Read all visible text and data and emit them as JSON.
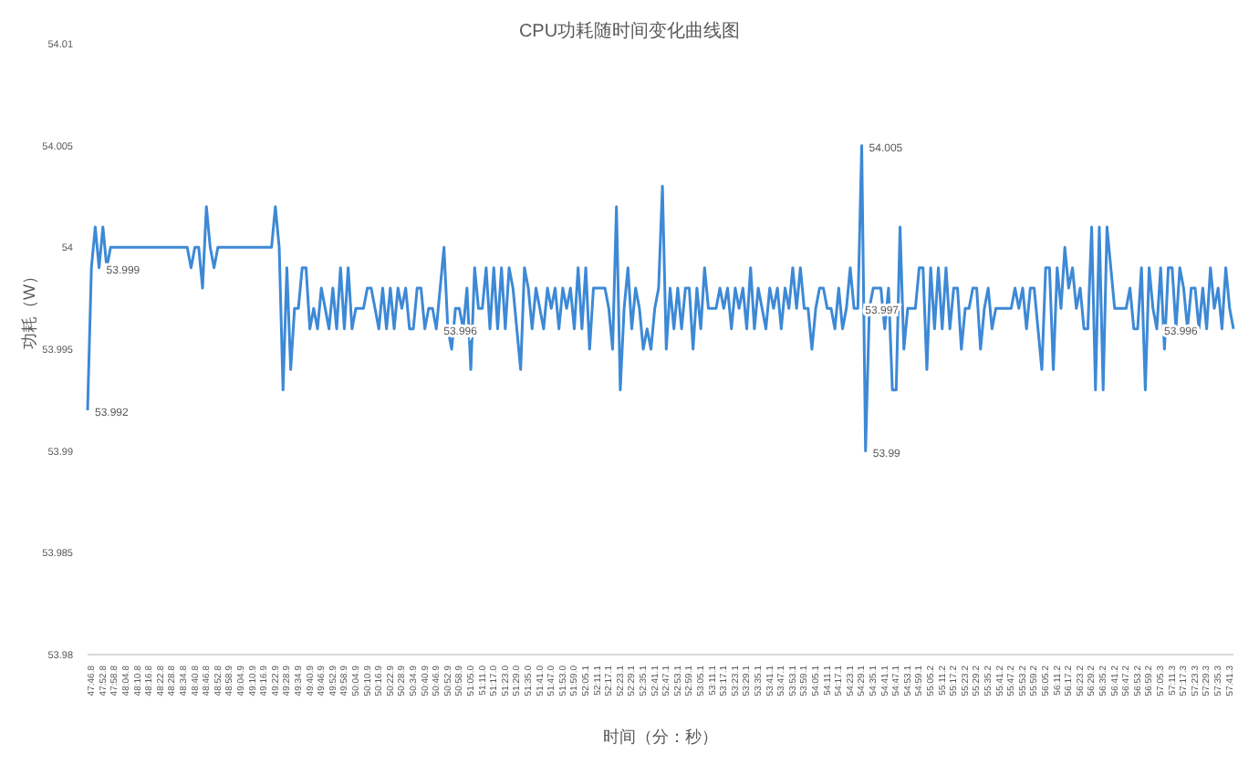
{
  "chart_data": {
    "type": "line",
    "title": "CPU功耗随时间变化曲线图",
    "xlabel": "时间（分：秒）",
    "ylabel": "功耗（W）",
    "categories": [
      "47:46.8",
      null,
      null,
      "47:52.8",
      null,
      null,
      "47:58.8",
      null,
      null,
      "48:04.8",
      null,
      null,
      "48:10.8",
      null,
      null,
      "48:16.8",
      null,
      null,
      "48:22.8",
      null,
      null,
      "48:28.8",
      null,
      null,
      "48:34.8",
      null,
      null,
      "48:40.8",
      null,
      null,
      "48:46.8",
      null,
      null,
      "48:52.8",
      null,
      null,
      "48:58.9",
      null,
      null,
      "49:04.9",
      null,
      null,
      "49:10.9",
      null,
      null,
      "49:16.9",
      null,
      null,
      "49:22.9",
      null,
      null,
      "49:28.9",
      null,
      null,
      "49:34.9",
      null,
      null,
      "49:40.9",
      null,
      null,
      "49:46.9",
      null,
      null,
      "49:52.9",
      null,
      null,
      "49:58.9",
      null,
      null,
      "50:04.9",
      null,
      null,
      "50:10.9",
      null,
      null,
      "50:16.9",
      null,
      null,
      "50:22.9",
      null,
      null,
      "50:28.9",
      null,
      null,
      "50:34.9",
      null,
      null,
      "50:40.9",
      null,
      null,
      "50:46.9",
      null,
      null,
      "50:52.9",
      null,
      null,
      "50:58.9",
      null,
      null,
      "51:05.0",
      null,
      null,
      "51:11.0",
      null,
      null,
      "51:17.0",
      null,
      null,
      "51:23.0",
      null,
      null,
      "51:29.0",
      null,
      null,
      "51:35.0",
      null,
      null,
      "51:41.0",
      null,
      null,
      "51:47.0",
      null,
      null,
      "51:53.0",
      null,
      null,
      "51:59.0",
      null,
      null,
      "52:05.1",
      null,
      null,
      "52:11.1",
      null,
      null,
      "52:17.1",
      null,
      null,
      "52:23.1",
      null,
      null,
      "52:29.1",
      null,
      null,
      "52:35.1",
      null,
      null,
      "52:41.1",
      null,
      null,
      "52:47.1",
      null,
      null,
      "52:53.1",
      null,
      null,
      "52:59.1",
      null,
      null,
      "53:05.1",
      null,
      null,
      "53:11.1",
      null,
      null,
      "53:17.1",
      null,
      null,
      "53:23.1",
      null,
      null,
      "53:29.1",
      null,
      null,
      "53:35.1",
      null,
      null,
      "53:41.1",
      null,
      null,
      "53:47.1",
      null,
      null,
      "53:53.1",
      null,
      null,
      "53:59.1",
      null,
      null,
      "54:05.1",
      null,
      null,
      "54:11.1",
      null,
      null,
      "54:17.1",
      null,
      null,
      "54:23.1",
      null,
      null,
      "54:29.1",
      null,
      null,
      "54:35.1",
      null,
      null,
      "54:41.1",
      null,
      null,
      "54:47.1",
      null,
      null,
      "54:53.1",
      null,
      null,
      "54:59.1",
      null,
      null,
      "55:05.2",
      null,
      null,
      "55:11.2",
      null,
      null,
      "55:17.2",
      null,
      null,
      "55:23.2",
      null,
      null,
      "55:29.2",
      null,
      null,
      "55:35.2",
      null,
      null,
      "55:41.2",
      null,
      null,
      "55:47.2",
      null,
      null,
      "55:53.2",
      null,
      null,
      "55:59.2",
      null,
      null,
      "56:05.2",
      null,
      null,
      "56:11.2",
      null,
      null,
      "56:17.2",
      null,
      null,
      "56:23.2",
      null,
      null,
      "56:29.2",
      null,
      null,
      "56:35.2",
      null,
      null,
      "56:41.2",
      null,
      null,
      "56:47.2",
      null,
      null,
      "56:53.2",
      null,
      null,
      "56:59.2",
      null,
      null,
      "57:05.3",
      null,
      null,
      "57:11.3",
      null,
      null,
      "57:17.3",
      null,
      null,
      "57:23.3",
      null,
      null,
      "57:29.3",
      null,
      null,
      "57:35.3",
      null,
      null,
      "57:41.3",
      null,
      null
    ],
    "series": [
      {
        "color": "#3d89d6",
        "values": [
          53.992,
          53.999,
          54.001,
          53.999,
          54.001,
          53.999,
          54,
          54,
          54,
          54,
          54,
          54,
          54,
          54,
          54,
          54,
          54,
          54,
          54,
          54,
          54,
          54,
          54,
          54,
          54,
          54,
          54,
          53.999,
          54,
          54,
          53.998,
          54.002,
          54,
          53.999,
          54,
          54,
          54,
          54,
          54,
          54,
          54,
          54,
          54,
          54,
          54,
          54,
          54,
          54,
          54,
          54.002,
          54,
          53.993,
          53.999,
          53.994,
          53.997,
          53.997,
          53.999,
          53.999,
          53.996,
          53.997,
          53.996,
          53.998,
          53.997,
          53.996,
          53.998,
          53.996,
          53.999,
          53.996,
          53.999,
          53.996,
          53.997,
          53.997,
          53.997,
          53.998,
          53.998,
          53.997,
          53.996,
          53.998,
          53.996,
          53.998,
          53.996,
          53.998,
          53.997,
          53.998,
          53.996,
          53.996,
          53.998,
          53.998,
          53.996,
          53.997,
          53.997,
          53.996,
          53.998,
          54,
          53.996,
          53.995,
          53.997,
          53.997,
          53.996,
          53.998,
          53.994,
          53.999,
          53.997,
          53.997,
          53.999,
          53.996,
          53.999,
          53.996,
          53.999,
          53.996,
          53.999,
          53.998,
          53.996,
          53.994,
          53.999,
          53.998,
          53.996,
          53.998,
          53.997,
          53.996,
          53.998,
          53.997,
          53.998,
          53.996,
          53.998,
          53.997,
          53.998,
          53.996,
          53.999,
          53.996,
          53.999,
          53.995,
          53.998,
          53.998,
          53.998,
          53.998,
          53.997,
          53.995,
          54.002,
          53.993,
          53.997,
          53.999,
          53.996,
          53.998,
          53.997,
          53.995,
          53.996,
          53.995,
          53.997,
          53.998,
          54.003,
          53.995,
          53.998,
          53.996,
          53.998,
          53.996,
          53.998,
          53.998,
          53.995,
          53.998,
          53.996,
          53.999,
          53.997,
          53.997,
          53.997,
          53.998,
          53.997,
          53.998,
          53.996,
          53.998,
          53.997,
          53.998,
          53.996,
          53.999,
          53.996,
          53.998,
          53.997,
          53.996,
          53.998,
          53.997,
          53.998,
          53.996,
          53.998,
          53.997,
          53.999,
          53.997,
          53.999,
          53.997,
          53.997,
          53.995,
          53.997,
          53.998,
          53.998,
          53.997,
          53.997,
          53.996,
          53.998,
          53.996,
          53.997,
          53.999,
          53.997,
          53.997,
          54.005,
          53.99,
          53.997,
          53.998,
          53.998,
          53.998,
          53.996,
          53.998,
          53.993,
          53.993,
          54.001,
          53.995,
          53.997,
          53.997,
          53.997,
          53.999,
          53.999,
          53.994,
          53.999,
          53.996,
          53.999,
          53.996,
          53.999,
          53.996,
          53.998,
          53.998,
          53.995,
          53.997,
          53.997,
          53.998,
          53.998,
          53.995,
          53.997,
          53.998,
          53.996,
          53.997,
          53.997,
          53.997,
          53.997,
          53.997,
          53.998,
          53.997,
          53.998,
          53.996,
          53.998,
          53.998,
          53.996,
          53.994,
          53.999,
          53.999,
          53.994,
          53.999,
          53.997,
          54,
          53.998,
          53.999,
          53.997,
          53.998,
          53.996,
          53.996,
          54.001,
          53.993,
          54.001,
          53.993,
          54.001,
          53.999,
          53.997,
          53.997,
          53.997,
          53.997,
          53.998,
          53.996,
          53.996,
          53.999,
          53.993,
          53.999,
          53.997,
          53.996,
          53.999,
          53.995,
          53.999,
          53.999,
          53.996,
          53.999,
          53.998,
          53.996,
          53.998,
          53.998,
          53.996,
          53.998,
          53.996,
          53.999,
          53.997,
          53.998,
          53.996,
          53.999,
          53.997,
          53.996
        ],
        "value_labels": [
          "53.992",
          null,
          null,
          "53.999",
          null,
          null,
          null,
          null,
          null,
          null,
          null,
          null,
          null,
          null,
          null,
          null,
          null,
          null,
          null,
          null,
          null,
          null,
          null,
          null,
          null,
          null,
          null,
          null,
          null,
          null,
          null,
          null,
          null,
          null,
          null,
          null,
          null,
          null,
          null,
          null,
          null,
          null,
          null,
          null,
          null,
          null,
          null,
          null,
          null,
          null,
          null,
          null,
          null,
          null,
          null,
          null,
          null,
          null,
          null,
          null,
          null,
          null,
          null,
          null,
          null,
          null,
          null,
          null,
          null,
          null,
          null,
          null,
          null,
          null,
          null,
          null,
          null,
          null,
          null,
          null,
          null,
          null,
          null,
          null,
          null,
          null,
          null,
          null,
          null,
          null,
          null,
          "53.996",
          null,
          null,
          null,
          null,
          null,
          null,
          null,
          null,
          null,
          null,
          null,
          null,
          null,
          null,
          null,
          null,
          null,
          null,
          null,
          null,
          null,
          null,
          null,
          null,
          null,
          null,
          null,
          null,
          null,
          null,
          null,
          null,
          null,
          null,
          null,
          null,
          null,
          null,
          null,
          null,
          null,
          null,
          null,
          null,
          null,
          null,
          null,
          null,
          null,
          null,
          null,
          null,
          null,
          null,
          null,
          null,
          null,
          null,
          null,
          null,
          null,
          null,
          null,
          null,
          null,
          null,
          null,
          null,
          null,
          null,
          null,
          null,
          null,
          null,
          null,
          null,
          null,
          null,
          null,
          null,
          null,
          null,
          null,
          null,
          null,
          null,
          null,
          null,
          null,
          null,
          null,
          null,
          null,
          null,
          null,
          null,
          null,
          null,
          null,
          null,
          null,
          null,
          null,
          null,
          null,
          null,
          null,
          null,
          null,
          "53.997",
          "54.005",
          "53.99",
          null,
          null,
          null,
          null,
          null,
          null,
          null,
          null,
          null,
          null,
          null,
          null,
          null,
          null,
          null,
          null,
          null,
          null,
          null,
          null,
          null,
          null,
          null,
          null,
          null,
          null,
          null,
          null,
          null,
          null,
          null,
          null,
          null,
          null,
          null,
          null,
          null,
          null,
          null,
          null,
          null,
          null,
          null,
          null,
          null,
          null,
          null,
          null,
          null,
          null,
          null,
          null,
          null,
          null,
          null,
          null,
          null,
          null,
          null,
          null,
          null,
          null,
          null,
          null,
          null,
          null,
          null,
          null,
          null,
          null,
          null,
          null,
          null,
          null,
          null,
          "53.996",
          null,
          null,
          null,
          null,
          null,
          null,
          null,
          null,
          null,
          null,
          null,
          null,
          null,
          null,
          null,
          null,
          null,
          null,
          null,
          null
        ]
      }
    ],
    "ylim": [
      53.98,
      54.01
    ],
    "yticks": [
      53.98,
      53.985,
      53.99,
      53.995,
      54,
      54.005,
      54.01
    ],
    "grid": false
  }
}
